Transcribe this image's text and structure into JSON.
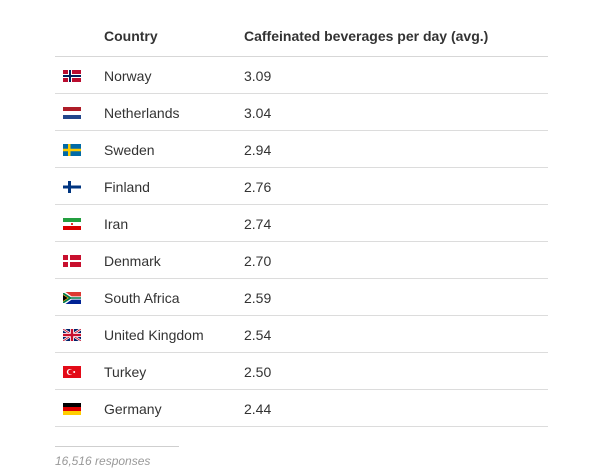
{
  "chart_data": {
    "type": "table",
    "columns": [
      "",
      "Country",
      "Caffeinated beverages per day (avg.)"
    ],
    "rows": [
      {
        "flag": "norway-flag-icon",
        "country": "Norway",
        "value": "3.09"
      },
      {
        "flag": "netherlands-flag-icon",
        "country": "Netherlands",
        "value": "3.04"
      },
      {
        "flag": "sweden-flag-icon",
        "country": "Sweden",
        "value": "2.94"
      },
      {
        "flag": "finland-flag-icon",
        "country": "Finland",
        "value": "2.76"
      },
      {
        "flag": "iran-flag-icon",
        "country": "Iran",
        "value": "2.74"
      },
      {
        "flag": "denmark-flag-icon",
        "country": "Denmark",
        "value": "2.70"
      },
      {
        "flag": "south-africa-flag-icon",
        "country": "South Africa",
        "value": "2.59"
      },
      {
        "flag": "united-kingdom-flag-icon",
        "country": "United Kingdom",
        "value": "2.54"
      },
      {
        "flag": "turkey-flag-icon",
        "country": "Turkey",
        "value": "2.50"
      },
      {
        "flag": "germany-flag-icon",
        "country": "Germany",
        "value": "2.44"
      }
    ],
    "footnote": "16,516 responses"
  }
}
